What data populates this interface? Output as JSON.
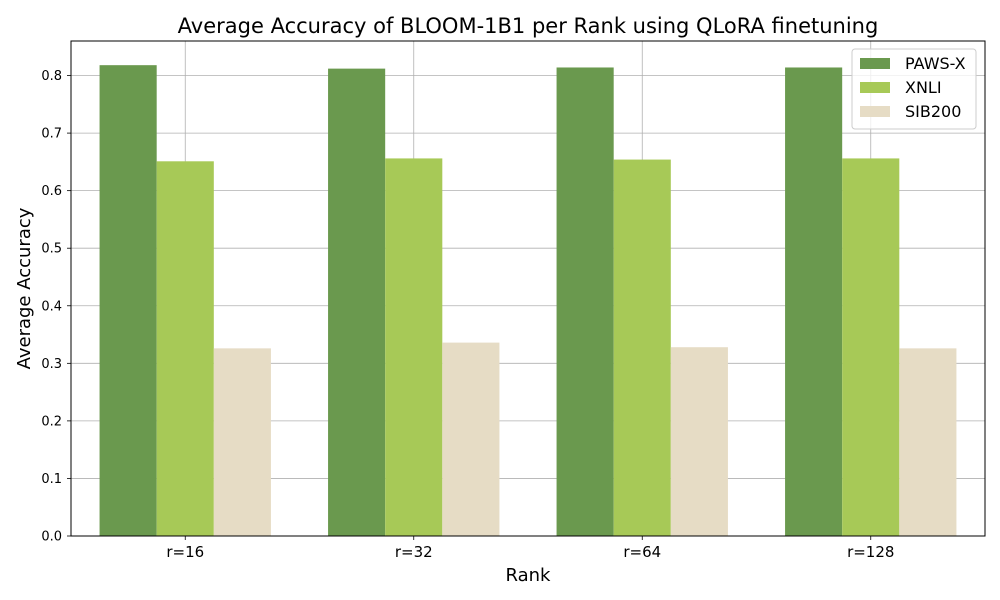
{
  "chart_data": {
    "type": "bar",
    "title": "Average Accuracy of BLOOM-1B1 per Rank using QLoRA finetuning",
    "xlabel": "Rank",
    "ylabel": "Average Accuracy",
    "categories": [
      "r=16",
      "r=32",
      "r=64",
      "r=128"
    ],
    "series": [
      {
        "name": "PAWS-X",
        "color": "#6a994e",
        "values": [
          0.818,
          0.812,
          0.814,
          0.814
        ]
      },
      {
        "name": "XNLI",
        "color": "#a7c957",
        "values": [
          0.651,
          0.656,
          0.654,
          0.656
        ]
      },
      {
        "name": "SIB200",
        "color": "#e6dcc5",
        "values": [
          0.326,
          0.336,
          0.328,
          0.326
        ]
      }
    ],
    "ylim": [
      0,
      0.86
    ],
    "yticks": [
      "0.0",
      "0.1",
      "0.2",
      "0.3",
      "0.4",
      "0.5",
      "0.6",
      "0.7",
      "0.8"
    ],
    "grid": true,
    "legend_position": "top-right"
  }
}
